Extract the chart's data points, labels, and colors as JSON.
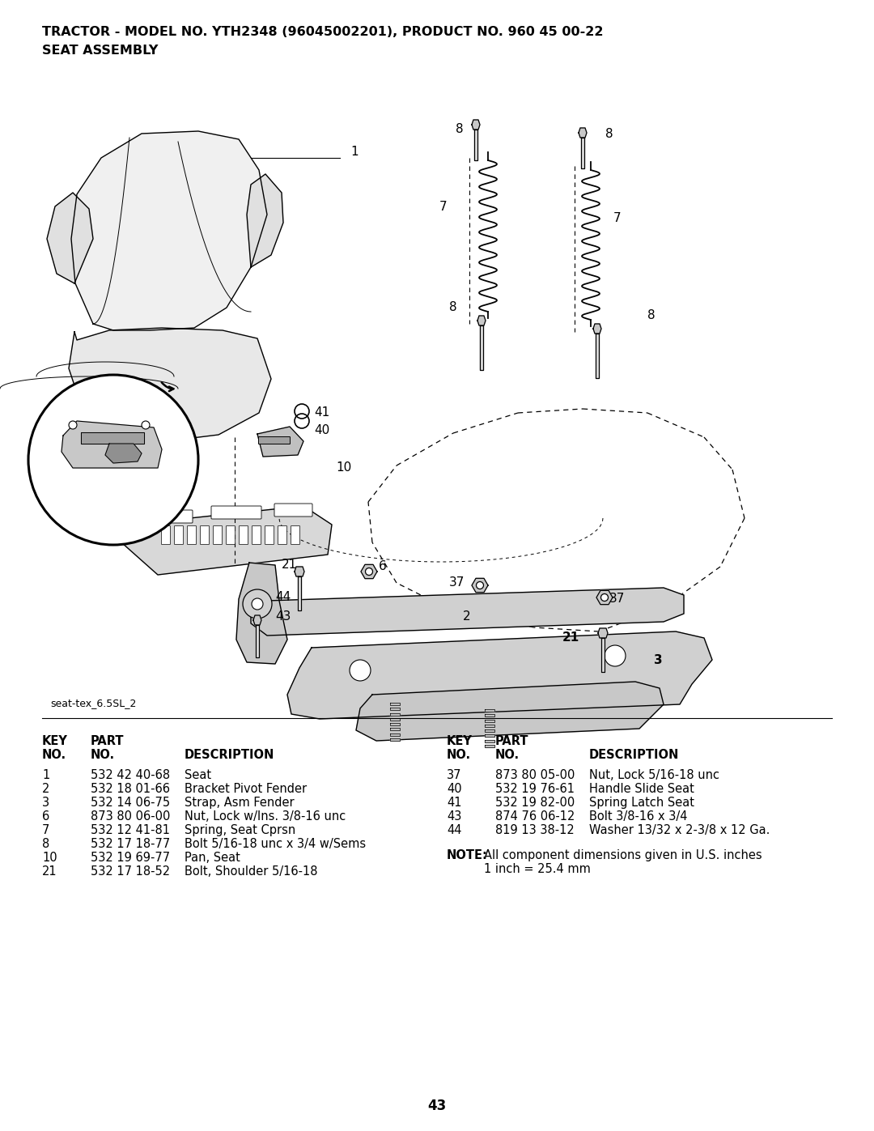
{
  "title_line1": "TRACTOR - MODEL NO. YTH2348 (96045002201), PRODUCT NO. 960 45 00-22",
  "title_line2": "SEAT ASSEMBLY",
  "image_label": "seat-tex_6.5SL_2",
  "page_number": "43",
  "bg_color": "#ffffff",
  "text_color": "#000000",
  "parts_left": [
    [
      "1",
      "532 42 40-68",
      "Seat"
    ],
    [
      "2",
      "532 18 01-66",
      "Bracket Pivot Fender"
    ],
    [
      "3",
      "532 14 06-75",
      "Strap, Asm Fender"
    ],
    [
      "6",
      "873 80 06-00",
      "Nut, Lock w/Ins. 3/8-16 unc"
    ],
    [
      "7",
      "532 12 41-81",
      "Spring, Seat Cprsn"
    ],
    [
      "8",
      "532 17 18-77",
      "Bolt 5/16-18 unc x 3/4 w/Sems"
    ],
    [
      "10",
      "532 19 69-77",
      "Pan, Seat"
    ],
    [
      "21",
      "532 17 18-52",
      "Bolt, Shoulder 5/16-18"
    ]
  ],
  "parts_right": [
    [
      "37",
      "873 80 05-00",
      "Nut, Lock 5/16-18 unc"
    ],
    [
      "40",
      "532 19 76-61",
      "Handle Slide Seat"
    ],
    [
      "41",
      "532 19 82-00",
      "Spring Latch Seat"
    ],
    [
      "43",
      "874 76 06-12",
      "Bolt 3/8-16 x 3/4"
    ],
    [
      "44",
      "819 13 38-12",
      "Washer 13/32 x 2-3/8 x 12 Ga."
    ]
  ],
  "note_bold": "NOTE:",
  "note_line1": "All component dimensions given in U.S. inches",
  "note_line2": "1 inch = 25.4 mm"
}
